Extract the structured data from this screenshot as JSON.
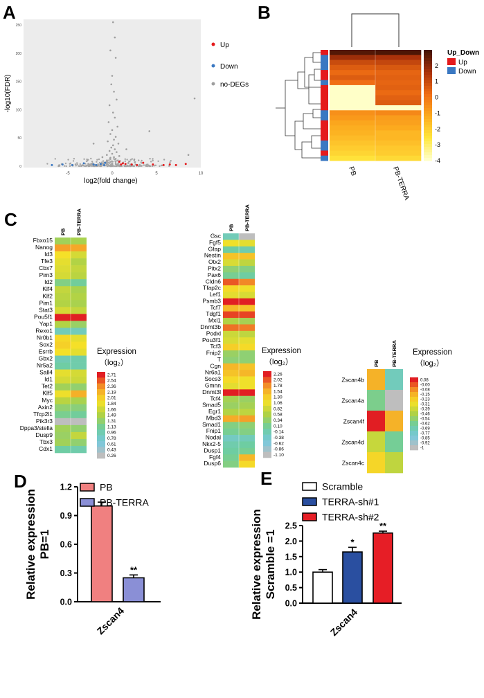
{
  "panels": {
    "A": "A",
    "B": "B",
    "C": "C",
    "D": "D",
    "E": "E"
  },
  "chart_data": [
    {
      "id": "A",
      "type": "scatter",
      "title": "",
      "xlabel": "log2(fold change)",
      "ylabel": "-log10(FDR)",
      "xlim": [
        -10,
        10
      ],
      "ylim": [
        0,
        260
      ],
      "xticks": [
        "-5",
        "0",
        "5",
        "10"
      ],
      "xtick_values": [
        -5,
        0,
        5,
        10
      ],
      "yticks": [
        "0",
        "50",
        "100",
        "150",
        "200",
        "250"
      ],
      "ytick_values": [
        0,
        50,
        100,
        150,
        200,
        250
      ],
      "legend": [
        {
          "label": "Up",
          "color": "#e41a1c"
        },
        {
          "label": "Down",
          "color": "#3a78c2"
        },
        {
          "label": "no-DEGs",
          "color": "#9e9e9e"
        }
      ],
      "points": {
        "up": [
          [
            0.8,
            8
          ],
          [
            1.2,
            5
          ],
          [
            1.5,
            4
          ],
          [
            2.2,
            3
          ],
          [
            3.5,
            6
          ],
          [
            4.6,
            3
          ],
          [
            5.8,
            2
          ],
          [
            6.5,
            3
          ],
          [
            7.2,
            2
          ],
          [
            8.3,
            4
          ],
          [
            1.0,
            3
          ],
          [
            2.8,
            2
          ]
        ],
        "down": [
          [
            -0.8,
            6
          ],
          [
            -1.3,
            4
          ],
          [
            -2.1,
            3
          ],
          [
            -3.2,
            5
          ],
          [
            -4.5,
            2
          ],
          [
            -5.6,
            3
          ],
          [
            -6.8,
            2
          ],
          [
            -1.8,
            2
          ],
          [
            -0.9,
            2
          ]
        ],
        "grey_sparse": [
          [
            0.1,
            255
          ],
          [
            0.3,
            228
          ],
          [
            -0.2,
            205
          ],
          [
            0.4,
            192
          ],
          [
            0.0,
            160
          ],
          [
            -0.1,
            145
          ],
          [
            0.2,
            132
          ],
          [
            0.5,
            118
          ],
          [
            -0.3,
            108
          ],
          [
            0.1,
            95
          ],
          [
            0.3,
            86
          ],
          [
            -0.4,
            78
          ],
          [
            0.6,
            70
          ],
          [
            0.0,
            64
          ],
          [
            -0.2,
            57
          ],
          [
            0.4,
            52
          ],
          [
            0.2,
            47
          ],
          [
            -0.5,
            44
          ],
          [
            0.7,
            40
          ],
          [
            0.1,
            37
          ],
          [
            -0.1,
            33
          ],
          [
            0.3,
            30
          ],
          [
            -0.3,
            27
          ],
          [
            0.5,
            25
          ],
          [
            0.0,
            22
          ],
          [
            -0.6,
            20
          ],
          [
            0.8,
            18
          ],
          [
            0.2,
            16
          ],
          [
            -0.2,
            15
          ],
          [
            0.4,
            13
          ],
          [
            4.2,
            62
          ],
          [
            -2.1,
            40
          ],
          [
            1.6,
            30
          ],
          [
            2.5,
            12
          ],
          [
            -1.1,
            16
          ],
          [
            9.3,
            120
          ],
          [
            8.6,
            20
          ]
        ]
      }
    },
    {
      "id": "B",
      "type": "heatmap",
      "columns": [
        "PB",
        "PB-TERRA"
      ],
      "legend_title": "Up_Down",
      "group_legend": [
        {
          "label": "Up",
          "color": "#e41a1c"
        },
        {
          "label": "Down",
          "color": "#3a78c2"
        }
      ],
      "colorbar_ticks": [
        "2",
        "1",
        "0",
        "-1",
        "-2",
        "-3",
        "-4"
      ],
      "colorbar_values": [
        2,
        1,
        0,
        -1,
        -2,
        -3,
        -4
      ],
      "rows": [
        {
          "group": "up",
          "values": [
            2.8,
            2.9
          ]
        },
        {
          "group": "down",
          "values": [
            1.8,
            1.6
          ]
        },
        {
          "group": "down",
          "values": [
            1.0,
            1.1
          ]
        },
        {
          "group": "down",
          "values": [
            0.6,
            0.7
          ]
        },
        {
          "group": "up",
          "values": [
            0.3,
            0.4
          ]
        },
        {
          "group": "up",
          "values": [
            0.6,
            0.5
          ]
        },
        {
          "group": "down",
          "values": [
            0.2,
            0.4
          ]
        },
        {
          "group": "up",
          "values": [
            -4.0,
            0.5
          ]
        },
        {
          "group": "up",
          "values": [
            -4.0,
            0.3
          ]
        },
        {
          "group": "up",
          "values": [
            -4.0,
            0.5
          ]
        },
        {
          "group": "up",
          "values": [
            -4.0,
            0.6
          ]
        },
        {
          "group": "up",
          "values": [
            -4.0,
            -4.0
          ]
        },
        {
          "group": "down",
          "values": [
            -0.6,
            -0.4
          ]
        },
        {
          "group": "down",
          "values": [
            -0.8,
            -0.9
          ]
        },
        {
          "group": "up",
          "values": [
            -1.1,
            -1.0
          ]
        },
        {
          "group": "up",
          "values": [
            -1.3,
            -1.2
          ]
        },
        {
          "group": "up",
          "values": [
            -1.4,
            -1.5
          ]
        },
        {
          "group": "up",
          "values": [
            -1.6,
            -1.5
          ]
        },
        {
          "group": "down",
          "values": [
            -1.8,
            -1.7
          ]
        },
        {
          "group": "down",
          "values": [
            -2.0,
            -1.9
          ]
        },
        {
          "group": "up",
          "values": [
            -2.2,
            -2.0
          ]
        },
        {
          "group": "down",
          "values": [
            -2.5,
            -2.3
          ]
        }
      ]
    },
    {
      "id": "C1",
      "type": "heatmap",
      "columns": [
        "PB",
        "PB-TERRA"
      ],
      "legend_title": "Expression",
      "legend_subtitle": "（log₂）",
      "colorbar_labels": [
        "2.71",
        "2.54",
        "2.36",
        "2.19",
        "2.01",
        "1.84",
        "1.66",
        "1.49",
        "1.31",
        "1.13",
        "0.96",
        "0.78",
        "0.61",
        "0.43",
        "0.26"
      ],
      "genes": [
        "Fbxo15",
        "Nanog",
        "Id3",
        "Tfe3",
        "Cbx7",
        "Pim3",
        "Id2",
        "Klf4",
        "Klf2",
        "Pim1",
        "Stat3",
        "Pou5f1",
        "Yap1",
        "Rexo1",
        "Nr0b1",
        "Sox2",
        "Esrrb",
        "Gbx2",
        "Nr5a2",
        "Sall4",
        "Id1",
        "Tet2",
        "Klf5",
        "Myc",
        "Axin2",
        "Tfcp2l1",
        "Pik3r3",
        "Dppa3/stella",
        "Dusp9",
        "Tbx3",
        "Cdx1"
      ],
      "values": [
        [
          1.4,
          1.45
        ],
        [
          2.3,
          2.25
        ],
        [
          1.9,
          1.7
        ],
        [
          1.8,
          1.5
        ],
        [
          1.75,
          1.6
        ],
        [
          1.7,
          1.55
        ],
        [
          1.2,
          1.1
        ],
        [
          1.6,
          1.45
        ],
        [
          1.55,
          1.5
        ],
        [
          1.5,
          1.45
        ],
        [
          1.7,
          1.6
        ],
        [
          2.7,
          2.7
        ],
        [
          1.5,
          1.35
        ],
        [
          0.9,
          0.9
        ],
        [
          1.95,
          1.8
        ],
        [
          2.0,
          1.9
        ],
        [
          1.9,
          1.8
        ],
        [
          0.95,
          1.0
        ],
        [
          1.05,
          1.0
        ],
        [
          1.8,
          1.7
        ],
        [
          1.7,
          1.65
        ],
        [
          1.4,
          1.3
        ],
        [
          1.85,
          2.2
        ],
        [
          1.55,
          1.45
        ],
        [
          1.3,
          1.25
        ],
        [
          1.15,
          1.1
        ],
        [
          0.26,
          0.26
        ],
        [
          1.4,
          1.3
        ],
        [
          1.35,
          1.6
        ],
        [
          1.4,
          1.3
        ],
        [
          1.05,
          1.0
        ]
      ]
    },
    {
      "id": "C2",
      "type": "heatmap",
      "columns": [
        "PB",
        "PB-TERRA"
      ],
      "legend_title": "Expression",
      "legend_subtitle": "（log₂）",
      "colorbar_labels": [
        "2.26",
        "2.02",
        "1.78",
        "1.54",
        "1.30",
        "1.06",
        "0.82",
        "0.58",
        "0.34",
        "0.10",
        "-0.14",
        "-0.38",
        "-0.62",
        "-0.86",
        "-1.10"
      ],
      "genes": [
        "Gsc",
        "Fgf5",
        "Gfap",
        "Nestin",
        "Otx2",
        "Pitx2",
        "Pax6",
        "Cldn6",
        "Tfap2c",
        "Lef1",
        "Psmb3",
        "Tcf7",
        "Tdgf1",
        "Mxl1",
        "Dnmt3b",
        "Podxl",
        "Pou3f1",
        "Tcf3",
        "Fnip2",
        "T",
        "Cgn",
        "Nr6a1",
        "Socs3",
        "Gmnn",
        "Dnmt3l",
        "Tcf4",
        "Smad5",
        "Egr1",
        "Mbd3",
        "Smad1",
        "Fnip1",
        "Nodal",
        "Nkx2-5",
        "Dusp1",
        "Fgf4",
        "Dusp6"
      ],
      "values": [
        [
          -0.2,
          -1.1
        ],
        [
          1.1,
          1.0
        ],
        [
          0.0,
          -0.1
        ],
        [
          1.4,
          1.4
        ],
        [
          0.9,
          0.7
        ],
        [
          0.3,
          0.2
        ],
        [
          0.1,
          0.0
        ],
        [
          2.0,
          1.8
        ],
        [
          1.2,
          1.1
        ],
        [
          1.0,
          0.9
        ],
        [
          2.26,
          2.26
        ],
        [
          1.5,
          1.4
        ],
        [
          2.1,
          2.1
        ],
        [
          0.6,
          0.5
        ],
        [
          1.9,
          1.85
        ],
        [
          0.8,
          0.7
        ],
        [
          0.9,
          1.0
        ],
        [
          1.3,
          1.2
        ],
        [
          0.4,
          0.3
        ],
        [
          0.3,
          0.3
        ],
        [
          1.5,
          1.4
        ],
        [
          1.4,
          1.5
        ],
        [
          1.2,
          1.1
        ],
        [
          1.0,
          1.1
        ],
        [
          2.26,
          2.26
        ],
        [
          0.5,
          0.4
        ],
        [
          0.4,
          0.5
        ],
        [
          0.6,
          0.7
        ],
        [
          1.6,
          1.7
        ],
        [
          0.2,
          0.3
        ],
        [
          0.1,
          0.2
        ],
        [
          -0.3,
          -0.2
        ],
        [
          -0.1,
          0.0
        ],
        [
          0.0,
          0.1
        ],
        [
          0.1,
          1.5
        ],
        [
          0.2,
          1.2
        ]
      ]
    },
    {
      "id": "C3",
      "type": "heatmap",
      "columns": [
        "PB",
        "PB-TERRA"
      ],
      "legend_title": "Expression",
      "legend_subtitle": "（log₂）",
      "colorbar_labels": [
        "0.08",
        "-0.00",
        "-0.08",
        "-0.15",
        "-0.23",
        "-0.31",
        "-0.39",
        "-0.46",
        "-0.54",
        "-0.62",
        "-0.69",
        "-0.77",
        "-0.85",
        "-0.92",
        "-1"
      ],
      "genes": [
        "Zscan4b",
        "Zscan4a",
        "Zscan4f",
        "Zscan4d",
        "Zscan4c"
      ],
      "values": [
        [
          -0.15,
          -0.72
        ],
        [
          -0.6,
          -1.0
        ],
        [
          0.08,
          -0.15
        ],
        [
          -0.4,
          -0.62
        ],
        [
          -0.25,
          -0.42
        ]
      ]
    },
    {
      "id": "D",
      "type": "bar",
      "title": "",
      "xlabel": "",
      "ylabel": "Relative expression PB=1",
      "ylabel_lines": [
        "Relative expression",
        "PB=1"
      ],
      "categories": [
        "Zscan4"
      ],
      "ylim": [
        0,
        1.2
      ],
      "yticks": [
        "0.0",
        "0.3",
        "0.6",
        "0.9",
        "1.2"
      ],
      "ytick_values": [
        0,
        0.3,
        0.6,
        0.9,
        1.2
      ],
      "series": [
        {
          "name": "PB",
          "values": [
            1.0
          ],
          "error": [
            0.04
          ],
          "color": "#f08080",
          "sig": ""
        },
        {
          "name": "PB-TERRA",
          "values": [
            0.25
          ],
          "error": [
            0.03
          ],
          "color": "#8a8fd6",
          "sig": "**"
        }
      ]
    },
    {
      "id": "E",
      "type": "bar",
      "title": "",
      "xlabel": "",
      "ylabel": "Relative expression Scramble =1",
      "ylabel_lines": [
        "Relative expression",
        "Scramble =1"
      ],
      "categories": [
        "Zscan4"
      ],
      "ylim": [
        0,
        2.5
      ],
      "yticks": [
        "0.0",
        "0.5",
        "1.0",
        "1.5",
        "2.0",
        "2.5"
      ],
      "ytick_values": [
        0,
        0.5,
        1.0,
        1.5,
        2.0,
        2.5
      ],
      "series": [
        {
          "name": "Scramble",
          "values": [
            1.0
          ],
          "error": [
            0.08
          ],
          "color": "#ffffff",
          "sig": ""
        },
        {
          "name": "TERRA-sh#1",
          "values": [
            1.65
          ],
          "error": [
            0.15
          ],
          "color": "#2a4fa0",
          "sig": "*"
        },
        {
          "name": "TERRA-sh#2",
          "values": [
            2.26
          ],
          "error": [
            0.06
          ],
          "color": "#e61e26",
          "sig": "**"
        }
      ]
    }
  ]
}
